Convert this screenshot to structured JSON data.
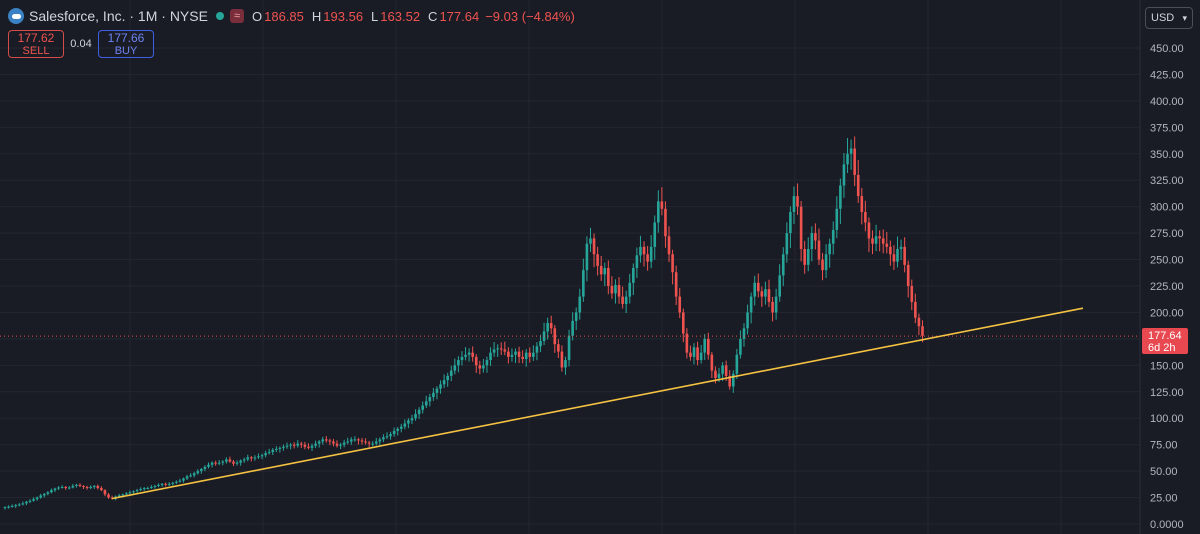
{
  "header": {
    "symbol_title": "Salesforce, Inc. · 1M · NYSE",
    "wave_label": "≈",
    "ohlc": [
      {
        "key": "O",
        "value": "186.85"
      },
      {
        "key": "H",
        "value": "193.56"
      },
      {
        "key": "L",
        "value": "163.52"
      },
      {
        "key": "C",
        "value": "177.64"
      }
    ],
    "change": "−9.03 (−4.84%)"
  },
  "trade": {
    "sell_price": "177.62",
    "sell_label": "SELL",
    "spread": "0.04",
    "buy_price": "177.66",
    "buy_label": "BUY"
  },
  "currency": "USD",
  "price_tag": {
    "price": "177.64",
    "countdown": "6d 2h"
  },
  "colors": {
    "up": "#26a69a",
    "down": "#ef5350",
    "trendline": "#f5c242",
    "background": "#1a1c25"
  },
  "chart_data": {
    "type": "candlestick",
    "interval": "1M",
    "y_ticks": [
      "450.00",
      "425.00",
      "400.00",
      "375.00",
      "350.00",
      "325.00",
      "300.00",
      "275.00",
      "250.00",
      "225.00",
      "200.00",
      "175.00",
      "150.00",
      "125.00",
      "100.00",
      "75.00",
      "50.00",
      "25.00",
      "0.0000"
    ],
    "ylim": [
      0,
      460
    ],
    "grid": true,
    "last_price": 177.64,
    "series": [
      {
        "values": [
          16,
          16.5,
          17,
          18,
          18.5,
          19.5,
          21,
          22,
          23.5,
          25,
          27,
          28.5,
          30,
          32,
          33.5,
          34.5,
          35,
          34,
          34.5,
          36,
          37,
          36,
          35,
          34,
          35,
          36,
          34,
          32,
          28,
          25,
          24,
          26,
          27,
          28,
          29,
          30,
          31,
          32,
          33,
          34,
          34,
          35,
          36,
          37,
          38,
          37,
          38,
          39,
          40,
          41,
          43,
          45,
          46,
          48,
          50,
          52,
          54,
          56,
          58,
          57,
          58,
          59,
          61,
          59,
          57,
          58,
          60,
          61,
          63,
          62,
          63,
          64,
          65,
          67,
          68,
          70,
          71,
          72,
          73,
          74,
          75,
          74,
          76,
          75,
          73,
          72,
          74,
          76,
          78,
          80,
          79,
          78,
          76,
          74,
          75,
          77,
          78,
          80,
          80,
          79,
          78,
          77,
          76,
          76,
          78,
          80,
          82,
          83,
          85,
          88,
          90,
          92,
          95,
          98,
          100,
          104,
          108,
          112,
          116,
          120,
          124,
          128,
          132,
          136,
          140,
          145,
          150,
          155,
          158,
          160,
          162,
          158,
          150,
          147,
          150,
          155,
          162,
          165,
          166,
          165,
          163,
          158,
          160,
          163,
          158,
          156,
          162,
          158,
          162,
          168,
          173,
          182,
          190,
          185,
          170,
          163,
          148,
          155,
          178,
          192,
          200,
          215,
          240,
          265,
          270,
          255,
          244,
          236,
          242,
          225,
          218,
          226,
          215,
          208,
          215,
          228,
          242,
          254,
          262,
          255,
          248,
          262,
          285,
          305,
          298,
          272,
          255,
          238,
          215,
          200,
          180,
          162,
          158,
          167,
          155,
          162,
          175,
          160,
          145,
          138,
          142,
          150,
          140,
          130,
          142,
          160,
          175,
          185,
          200,
          215,
          228,
          220,
          215,
          222,
          210,
          200,
          215,
          235,
          255,
          275,
          295,
          310,
          300,
          260,
          245,
          260,
          275,
          268,
          250,
          240,
          255,
          265,
          278,
          298,
          320,
          340,
          350,
          355,
          330,
          310,
          295,
          285,
          270,
          265,
          272,
          270,
          265,
          262,
          255,
          248,
          260,
          262,
          245,
          225,
          210,
          195,
          187,
          178
        ]
      }
    ]
  }
}
